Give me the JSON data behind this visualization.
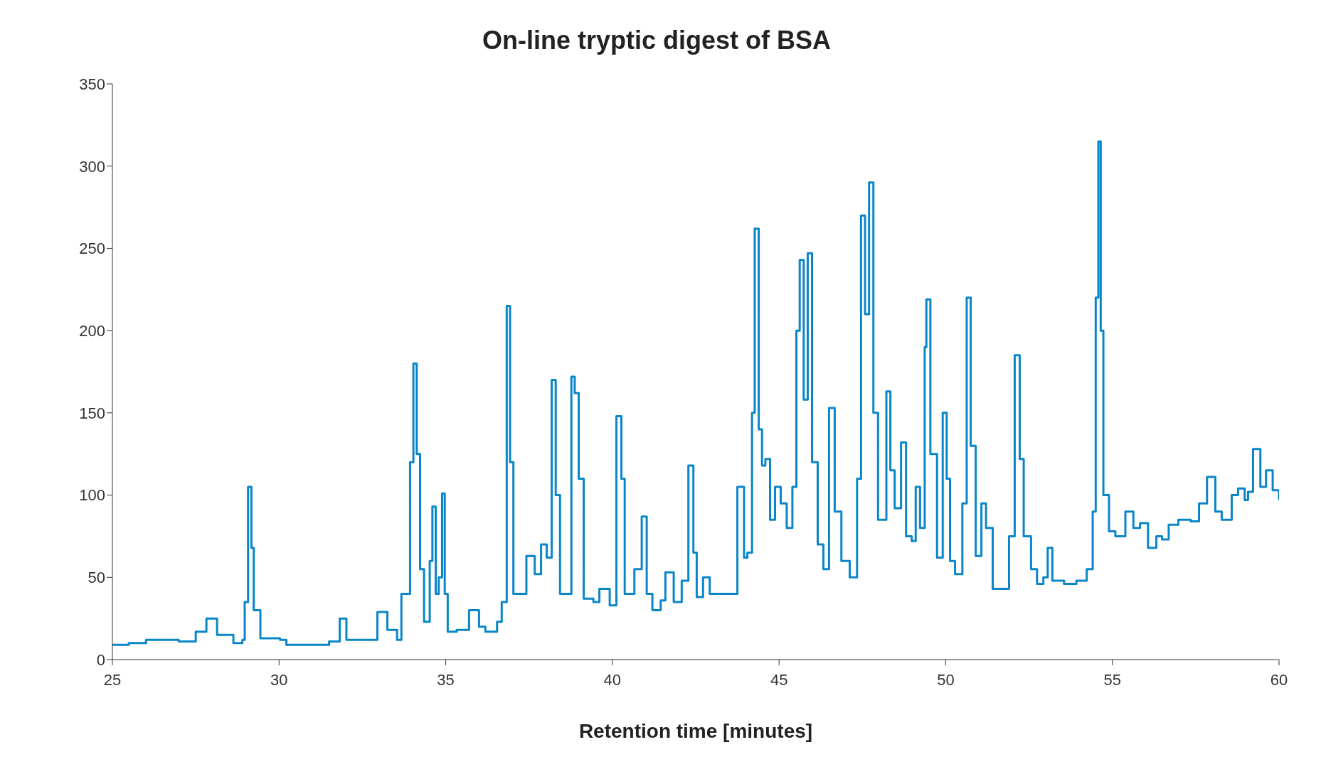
{
  "chart_data": {
    "type": "step",
    "title": "On-line tryptic digest of BSA",
    "xlabel": "Retention time [minutes]",
    "xlim": [
      25,
      60
    ],
    "xticks": [
      25,
      30,
      35,
      40,
      45,
      50,
      55,
      60
    ],
    "ylim": [
      0,
      350
    ],
    "yticks": [
      0,
      50,
      100,
      150,
      200,
      250,
      300,
      350
    ],
    "grid": false,
    "legend": false,
    "x": [
      25.0,
      25.49,
      26.01,
      26.99,
      27.5,
      27.82,
      28.14,
      28.63,
      28.9,
      28.97,
      29.07,
      29.17,
      29.24,
      29.44,
      30.03,
      30.22,
      31.01,
      31.5,
      31.82,
      32.02,
      32.51,
      32.95,
      33.25,
      33.54,
      33.67,
      33.93,
      34.03,
      34.13,
      34.23,
      34.35,
      34.52,
      34.6,
      34.7,
      34.79,
      34.89,
      34.97,
      35.06,
      35.33,
      35.53,
      35.7,
      36.0,
      36.19,
      36.54,
      36.68,
      36.83,
      36.93,
      37.03,
      37.17,
      37.42,
      37.67,
      37.86,
      38.03,
      38.18,
      38.3,
      38.43,
      38.62,
      38.77,
      38.87,
      38.99,
      39.14,
      39.43,
      39.61,
      39.92,
      40.12,
      40.27,
      40.37,
      40.66,
      40.88,
      41.03,
      41.2,
      41.45,
      41.59,
      41.84,
      42.08,
      42.28,
      42.43,
      42.53,
      42.72,
      42.92,
      43.24,
      43.56,
      43.75,
      43.95,
      44.05,
      44.19,
      44.27,
      44.39,
      44.49,
      44.59,
      44.73,
      44.88,
      45.05,
      45.23,
      45.4,
      45.52,
      45.62,
      45.74,
      45.86,
      45.99,
      46.16,
      46.33,
      46.5,
      46.67,
      46.87,
      47.12,
      47.34,
      47.46,
      47.58,
      47.7,
      47.83,
      47.97,
      48.22,
      48.34,
      48.47,
      48.66,
      48.81,
      48.98,
      49.1,
      49.23,
      49.37,
      49.42,
      49.54,
      49.74,
      49.91,
      50.03,
      50.13,
      50.28,
      50.5,
      50.63,
      50.75,
      50.9,
      51.07,
      51.21,
      51.41,
      51.71,
      51.9,
      52.07,
      52.22,
      52.34,
      52.56,
      52.74,
      52.93,
      53.06,
      53.2,
      53.55,
      53.92,
      54.23,
      54.41,
      54.5,
      54.58,
      54.65,
      54.73,
      54.9,
      55.09,
      55.39,
      55.63,
      55.83,
      56.07,
      56.32,
      56.49,
      56.69,
      56.98,
      57.35,
      57.6,
      57.84,
      58.09,
      58.28,
      58.58,
      58.77,
      58.97,
      59.07,
      59.22,
      59.44,
      59.61,
      59.81,
      60.0
    ],
    "series": [
      {
        "color": "#0a86c8",
        "values": [
          9,
          10,
          12,
          11,
          17,
          25,
          15,
          10,
          12,
          35,
          105,
          68,
          30,
          13,
          12,
          9,
          9,
          11,
          25,
          12,
          12,
          29,
          18,
          12,
          40,
          120,
          180,
          125,
          55,
          23,
          60,
          93,
          40,
          50,
          101,
          40,
          17,
          18,
          18,
          30,
          20,
          17,
          23,
          35,
          215,
          120,
          40,
          40,
          63,
          52,
          70,
          62,
          170,
          100,
          40,
          40,
          172,
          162,
          110,
          37,
          35,
          43,
          33,
          148,
          110,
          40,
          55,
          87,
          40,
          30,
          36,
          53,
          35,
          48,
          118,
          65,
          38,
          50,
          40,
          40,
          40,
          105,
          62,
          65,
          150,
          262,
          140,
          118,
          122,
          85,
          105,
          95,
          80,
          105,
          200,
          243,
          158,
          247,
          120,
          70,
          55,
          153,
          90,
          60,
          50,
          110,
          270,
          210,
          290,
          150,
          85,
          163,
          115,
          92,
          132,
          75,
          72,
          105,
          80,
          190,
          219,
          125,
          62,
          150,
          110,
          60,
          52,
          95,
          220,
          130,
          63,
          95,
          80,
          43,
          43,
          75,
          185,
          122,
          75,
          55,
          46,
          50,
          68,
          48,
          46,
          48,
          55,
          90,
          220,
          315,
          200,
          100,
          78,
          75,
          90,
          80,
          83,
          68,
          75,
          73,
          82,
          85,
          84,
          95,
          111,
          90,
          85,
          100,
          104,
          97,
          102,
          128,
          105,
          115,
          103,
          97
        ]
      }
    ]
  }
}
